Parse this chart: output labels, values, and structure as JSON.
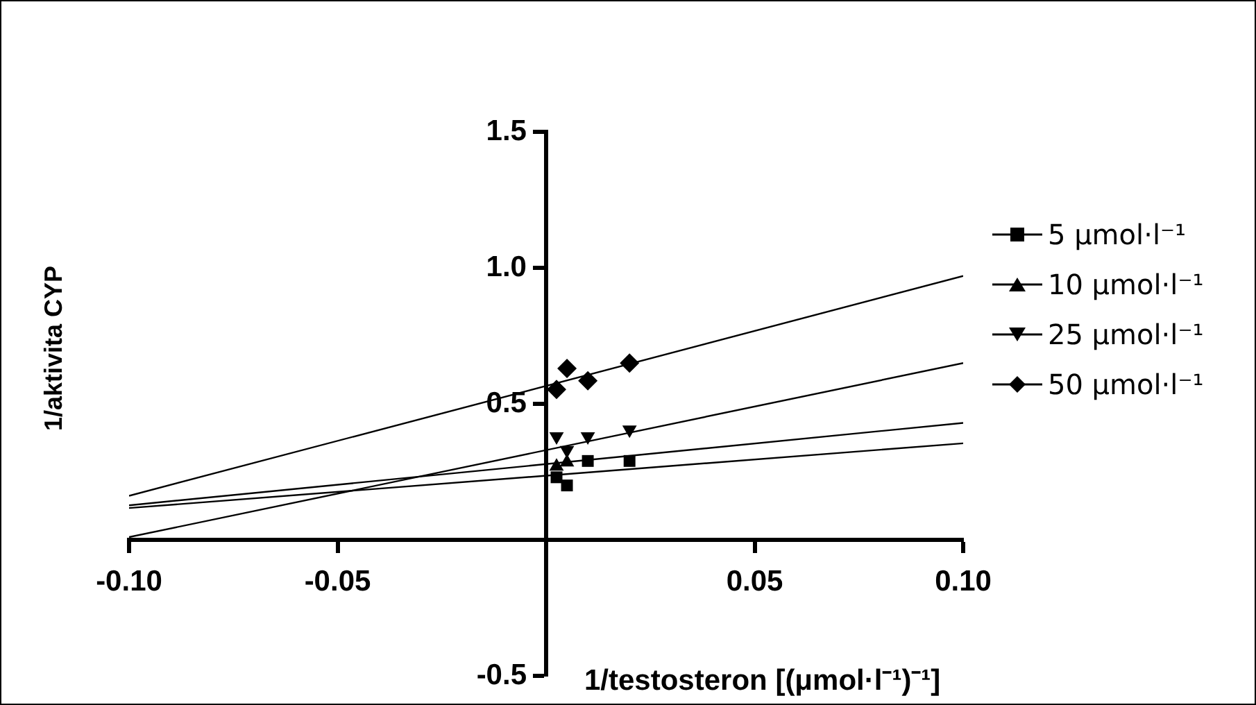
{
  "chart_data": {
    "type": "scatter",
    "xlabel": "1/testosteron [(μmol·l⁻¹)⁻¹]",
    "ylabel": "1/aktivita CYP",
    "xlim": [
      -0.1,
      0.1
    ],
    "ylim": [
      -0.5,
      1.5
    ],
    "xticks": [
      {
        "value": -0.1,
        "label": "-0.10"
      },
      {
        "value": -0.05,
        "label": "-0.05"
      },
      {
        "value": 0.05,
        "label": "0.05"
      },
      {
        "value": 0.1,
        "label": "0.10"
      }
    ],
    "yticks": [
      -0.5,
      0.5,
      {
        "value": 1,
        "label": "1.0"
      },
      1.5
    ],
    "grid": false,
    "legend": "right",
    "series": [
      {
        "name": "5 μmol·l⁻¹",
        "color": "#000000",
        "marker": "square",
        "x": [
          0.0025,
          0.005,
          0.01,
          0.02
        ],
        "values": [
          0.23,
          0.2,
          0.29,
          0.29
        ]
      },
      {
        "name": "10 μmol·l⁻¹",
        "color": "#000000",
        "marker": "triangle",
        "x": [
          0.0025,
          0.005
        ],
        "values": [
          0.27,
          0.285
        ]
      },
      {
        "name": "25 μmol·l⁻¹",
        "color": "#000000",
        "marker": "triangle-down",
        "x": [
          0.0025,
          0.005,
          0.01,
          0.02
        ],
        "values": [
          0.38,
          0.33,
          0.38,
          0.405
        ]
      },
      {
        "name": "50 μmol·l⁻¹",
        "color": "#000000",
        "marker": "diamond",
        "x": [
          0.0025,
          0.005,
          0.01,
          0.02
        ],
        "values": [
          0.553,
          0.63,
          0.585,
          0.65
        ]
      },
      {
        "type": "line",
        "color": "#000000",
        "marker": "none",
        "x": [
          -0.1,
          0.1
        ],
        "values": [
          0.117,
          0.355
        ]
      },
      {
        "type": "line",
        "color": "#000000",
        "marker": "none",
        "x": [
          -0.1,
          0.1
        ],
        "values": [
          0.127,
          0.43
        ]
      },
      {
        "type": "line",
        "color": "#000000",
        "marker": "none",
        "x": [
          -0.1,
          0.1
        ],
        "values": [
          0.01,
          0.65
        ]
      },
      {
        "type": "line",
        "color": "#000000",
        "marker": "none",
        "x": [
          -0.1,
          0.1
        ],
        "values": [
          0.162,
          0.97
        ]
      }
    ]
  }
}
